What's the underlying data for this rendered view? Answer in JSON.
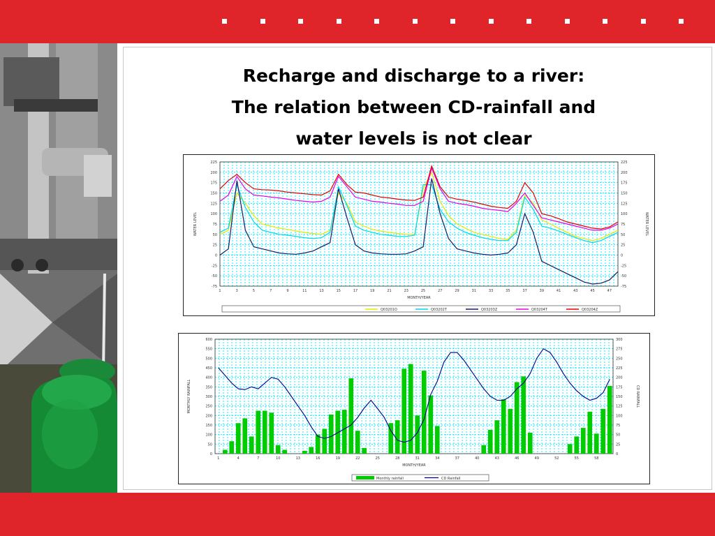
{
  "slide": {
    "title_lines": [
      "Recharge and discharge to a river:",
      "The relation between CD-rainfall and",
      "water levels is not clear"
    ]
  },
  "colors": {
    "accent_red": "#e0252a",
    "grid_cyan": "#00e5ff",
    "bar_green": "#00cc00",
    "line_navy": "#00008b"
  },
  "chart_data": [
    {
      "type": "line",
      "title": "",
      "xlabel": "MONTH/YEAR",
      "ylabel_left": "WATER LEVEL",
      "ylabel_right": "WATER LEVEL",
      "ylim": [
        -75,
        225
      ],
      "yticks": [
        -75,
        -50,
        -25,
        0,
        25,
        50,
        75,
        100,
        125,
        150,
        175,
        200,
        225
      ],
      "grid": true,
      "legend_position": "bottom",
      "x": [
        1,
        2,
        3,
        4,
        5,
        6,
        7,
        8,
        9,
        10,
        11,
        12,
        13,
        14,
        15,
        16,
        17,
        18,
        19,
        20,
        21,
        22,
        23,
        24,
        25,
        26,
        27,
        28,
        29,
        30,
        31,
        32,
        33,
        34,
        35,
        36,
        37,
        38,
        39,
        40,
        41,
        42,
        43,
        44,
        45,
        46,
        47,
        48
      ],
      "series": [
        {
          "name": "Q03201O",
          "color": "#e8e800",
          "values": [
            50,
            60,
            150,
            125,
            95,
            75,
            70,
            65,
            62,
            58,
            55,
            52,
            50,
            60,
            150,
            125,
            80,
            70,
            62,
            58,
            55,
            52,
            50,
            50,
            160,
            200,
            130,
            95,
            75,
            65,
            55,
            50,
            45,
            40,
            38,
            60,
            145,
            125,
            85,
            75,
            65,
            55,
            45,
            40,
            35,
            40,
            50,
            60
          ]
        },
        {
          "name": "Q03202T",
          "color": "#00d8e8",
          "values": [
            55,
            65,
            170,
            115,
            80,
            60,
            55,
            50,
            48,
            45,
            42,
            40,
            42,
            55,
            165,
            120,
            70,
            60,
            55,
            50,
            48,
            45,
            45,
            48,
            170,
            170,
            110,
            80,
            65,
            55,
            48,
            42,
            38,
            35,
            35,
            55,
            140,
            110,
            70,
            65,
            58,
            50,
            42,
            35,
            30,
            35,
            45,
            55
          ]
        },
        {
          "name": "Q03203Z",
          "color": "#1a1a66",
          "values": [
            0,
            15,
            180,
            60,
            20,
            15,
            10,
            5,
            3,
            2,
            5,
            10,
            20,
            30,
            160,
            90,
            25,
            10,
            5,
            3,
            2,
            2,
            3,
            10,
            20,
            185,
            100,
            40,
            15,
            10,
            5,
            2,
            0,
            2,
            5,
            25,
            100,
            55,
            -15,
            -25,
            -35,
            -45,
            -55,
            -65,
            -70,
            -68,
            -60,
            -40
          ]
        },
        {
          "name": "Q03204T",
          "color": "#e800e8",
          "values": [
            130,
            145,
            190,
            160,
            145,
            143,
            140,
            138,
            135,
            132,
            130,
            128,
            130,
            140,
            190,
            165,
            140,
            135,
            130,
            128,
            125,
            123,
            120,
            120,
            130,
            210,
            160,
            130,
            125,
            122,
            118,
            113,
            110,
            108,
            105,
            125,
            150,
            120,
            90,
            85,
            80,
            75,
            70,
            65,
            60,
            60,
            65,
            75
          ]
        },
        {
          "name": "Q03204Z",
          "color": "#e80000",
          "values": [
            160,
            180,
            195,
            175,
            160,
            158,
            157,
            155,
            152,
            150,
            148,
            146,
            145,
            155,
            195,
            170,
            152,
            150,
            145,
            140,
            138,
            135,
            133,
            132,
            140,
            215,
            165,
            140,
            135,
            132,
            128,
            123,
            118,
            115,
            113,
            130,
            175,
            150,
            100,
            95,
            88,
            80,
            75,
            70,
            65,
            63,
            68,
            80
          ]
        }
      ]
    },
    {
      "type": "bar",
      "title": "",
      "xlabel": "MONTH/YEAR",
      "ylabel_left": "MONTHLY RAINFALL",
      "ylabel_right": "CD RAINFALL",
      "ylim_left": [
        0,
        600
      ],
      "ylim_right": [
        0,
        300
      ],
      "yticks_left": [
        0,
        50,
        100,
        150,
        200,
        250,
        300,
        350,
        400,
        450,
        500,
        550,
        600
      ],
      "yticks_right": [
        0,
        25,
        50,
        75,
        100,
        125,
        150,
        175,
        200,
        225,
        250,
        275,
        300
      ],
      "grid": true,
      "legend_position": "bottom",
      "x": [
        1,
        2,
        3,
        4,
        5,
        6,
        7,
        8,
        9,
        10,
        11,
        12,
        13,
        14,
        15,
        16,
        17,
        18,
        19,
        20,
        21,
        22,
        23,
        24,
        25,
        26,
        27,
        28,
        29,
        30,
        31,
        32,
        33,
        34,
        35,
        36,
        37,
        38,
        39,
        40,
        41,
        42,
        43,
        44,
        45,
        46,
        47,
        48,
        49,
        50,
        51,
        52,
        53,
        54,
        55,
        56,
        57,
        58,
        59,
        60
      ],
      "series": [
        {
          "name": "Monthly rainfall",
          "color": "#00cc00",
          "axis": "left",
          "values": [
            0,
            20,
            65,
            160,
            185,
            90,
            225,
            225,
            215,
            45,
            20,
            0,
            0,
            15,
            35,
            100,
            130,
            205,
            225,
            230,
            395,
            120,
            30,
            0,
            0,
            0,
            160,
            175,
            445,
            470,
            200,
            435,
            305,
            145,
            0,
            0,
            0,
            0,
            0,
            0,
            45,
            125,
            175,
            285,
            235,
            375,
            405,
            110,
            0,
            0,
            0,
            0,
            0,
            50,
            90,
            135,
            220,
            105,
            235,
            355
          ]
        },
        {
          "name": "CD Rainfall",
          "color": "#00008b",
          "axis": "right",
          "values": [
            225,
            205,
            185,
            170,
            168,
            175,
            170,
            185,
            200,
            195,
            175,
            150,
            125,
            100,
            70,
            45,
            40,
            45,
            55,
            65,
            75,
            95,
            120,
            140,
            118,
            95,
            60,
            35,
            30,
            35,
            55,
            90,
            155,
            190,
            240,
            265,
            265,
            245,
            220,
            195,
            170,
            150,
            140,
            140,
            150,
            170,
            185,
            210,
            250,
            275,
            265,
            240,
            210,
            185,
            165,
            150,
            140,
            145,
            160,
            195
          ]
        }
      ]
    }
  ]
}
